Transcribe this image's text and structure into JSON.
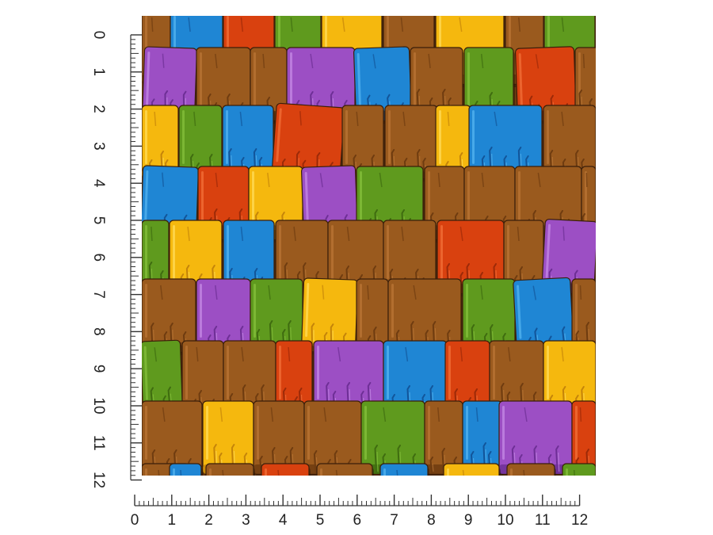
{
  "rulers": {
    "horizontal_labels": [
      "0",
      "1",
      "2",
      "3",
      "4",
      "5",
      "6",
      "7",
      "8",
      "9",
      "10",
      "11",
      "12"
    ],
    "vertical_labels": [
      "0",
      "1",
      "2",
      "3",
      "4",
      "5",
      "6",
      "7",
      "8",
      "9",
      "10",
      "11",
      "12"
    ],
    "minor_subdivisions": 8
  },
  "swatch": {
    "pattern": "wood-shingles",
    "colors": {
      "brown": "#9a5a1e",
      "purple": "#9c4fc4",
      "blue": "#1f86d4",
      "yellow": "#f5b80e",
      "green": "#5f9a1e",
      "red": "#d9410f"
    },
    "edge_color": "#3b1f0a"
  }
}
